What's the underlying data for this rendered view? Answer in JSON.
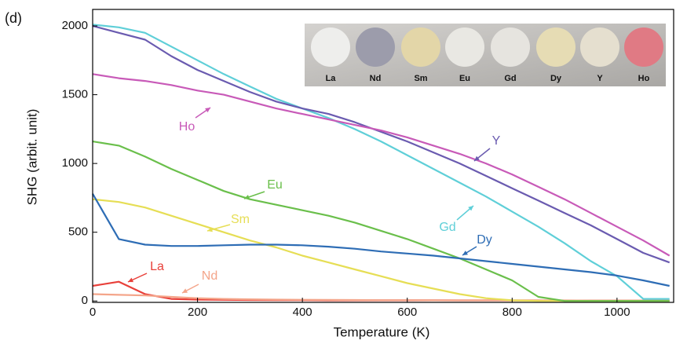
{
  "chart_data": {
    "type": "line",
    "panel_label": "(d)",
    "x_label": "Temperature (K)",
    "y_label": "SHG (arbit. unit)",
    "xlim": [
      0,
      1108
    ],
    "ylim": [
      -10,
      2120
    ],
    "xticks": [
      0,
      200,
      400,
      600,
      800,
      1000
    ],
    "yticks": [
      0,
      500,
      1000,
      1500,
      2000
    ],
    "x": [
      0,
      50,
      100,
      150,
      200,
      250,
      300,
      350,
      400,
      450,
      500,
      550,
      600,
      650,
      700,
      750,
      800,
      850,
      900,
      950,
      1000,
      1050,
      1100
    ],
    "series": [
      {
        "name": "La",
        "color": "#e8403a",
        "values": [
          110,
          140,
          50,
          15,
          10,
          8,
          7,
          6,
          6,
          5,
          5,
          5,
          5,
          5,
          4,
          4,
          4,
          4,
          3,
          3,
          3,
          3,
          3
        ]
      },
      {
        "name": "Nd",
        "color": "#f4a58a",
        "values": [
          50,
          45,
          40,
          30,
          20,
          15,
          12,
          10,
          9,
          8,
          7,
          6,
          6,
          5,
          5,
          5,
          4,
          4,
          4,
          3,
          3,
          3,
          3
        ]
      },
      {
        "name": "Sm",
        "color": "#e6de55",
        "values": [
          740,
          720,
          680,
          620,
          560,
          500,
          440,
          390,
          330,
          280,
          230,
          180,
          130,
          90,
          50,
          20,
          5,
          0,
          0,
          0,
          0,
          0,
          0
        ]
      },
      {
        "name": "Eu",
        "color": "#6abf4b",
        "values": [
          1160,
          1130,
          1050,
          960,
          880,
          800,
          740,
          700,
          660,
          620,
          570,
          510,
          450,
          380,
          310,
          230,
          150,
          30,
          0,
          0,
          0,
          0,
          0
        ]
      },
      {
        "name": "Gd",
        "color": "#5fcfd8",
        "values": [
          2010,
          1990,
          1950,
          1850,
          1750,
          1650,
          1560,
          1470,
          1400,
          1330,
          1250,
          1160,
          1060,
          960,
          860,
          760,
          650,
          540,
          420,
          290,
          180,
          15,
          15
        ]
      },
      {
        "name": "Dy",
        "color": "#2e6db5",
        "values": [
          780,
          450,
          410,
          400,
          400,
          405,
          410,
          410,
          405,
          395,
          380,
          360,
          345,
          330,
          310,
          290,
          270,
          250,
          230,
          210,
          185,
          150,
          110
        ]
      },
      {
        "name": "Y",
        "color": "#6a5bb0",
        "values": [
          2000,
          1950,
          1900,
          1780,
          1680,
          1600,
          1520,
          1450,
          1400,
          1360,
          1300,
          1230,
          1160,
          1080,
          1000,
          910,
          820,
          730,
          640,
          550,
          450,
          350,
          280
        ]
      },
      {
        "name": "Ho",
        "color": "#c85ab8",
        "values": [
          1650,
          1620,
          1600,
          1570,
          1530,
          1500,
          1450,
          1400,
          1360,
          1320,
          1280,
          1240,
          1190,
          1130,
          1070,
          1000,
          920,
          830,
          740,
          640,
          540,
          440,
          330
        ]
      }
    ],
    "inset_labels": [
      "La",
      "Nd",
      "Sm",
      "Eu",
      "Gd",
      "Dy",
      "Y",
      "Ho"
    ]
  }
}
